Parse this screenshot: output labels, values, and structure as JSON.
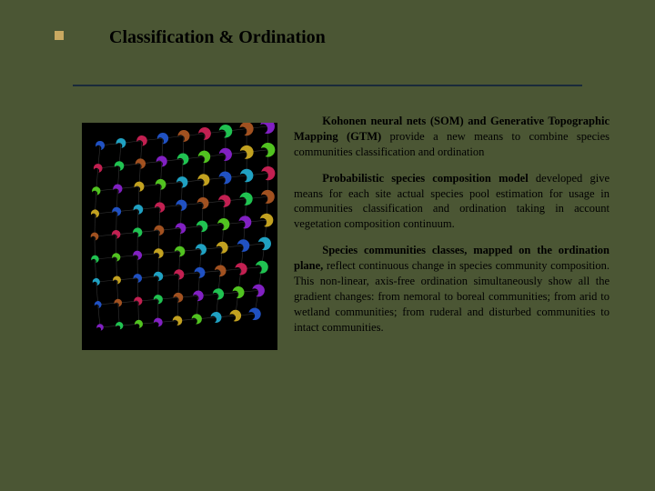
{
  "slide": {
    "title": "Classification & Ordination",
    "background_color": "#4b5634",
    "bullet_color": "#c9a961",
    "divider_color": "#1a2a3a",
    "text_color": "#000000",
    "title_fontsize": 20,
    "body_fontsize": 12.5,
    "paragraphs": [
      {
        "lead": "Kohonen neural nets (SOM) and Generative Topographic Mapping (GTM)",
        "rest": " provide a new means to combine species communities classification and ordination"
      },
      {
        "lead": "Probabilistic species composition model",
        "rest": " developed give means for each site actual species pool estimation for usage in communities classification and ordination taking in account vegetation composition continuum."
      },
      {
        "lead": "Species communities classes, mapped on the ordination plane,",
        "rest": " reflect continuous change in species community composition. This non-linear, axis-free ordination simultaneously show all the gradient changes: from nemoral to boreal communities; from arid to wetland communities; from ruderal and disturbed communities to intact communities."
      }
    ],
    "figure": {
      "type": "network",
      "background": "#000000",
      "node_colors": [
        "#2255cc",
        "#22cc55",
        "#ccaa22",
        "#cc2255",
        "#8822cc",
        "#22aacc",
        "#aa5522",
        "#55cc22"
      ],
      "grid_rows": 9,
      "grid_cols": 9,
      "skew": 0.35
    }
  }
}
